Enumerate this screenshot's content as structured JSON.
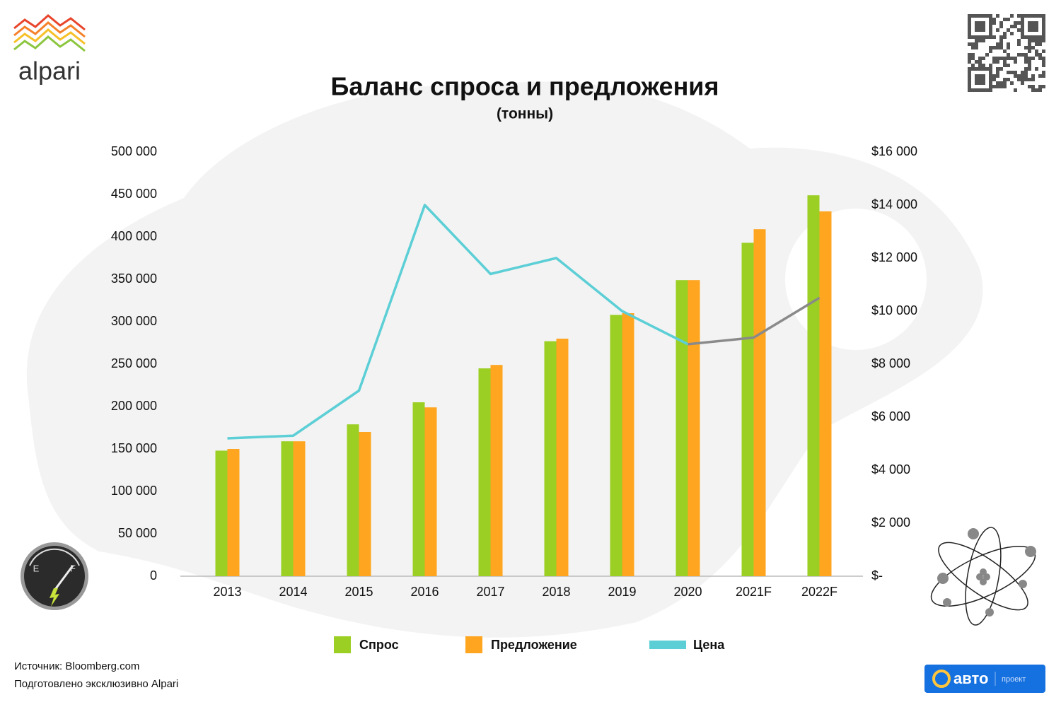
{
  "logo": {
    "text": "alpari"
  },
  "gauge": {
    "empty": "E",
    "full": "F"
  },
  "footer": {
    "source": "Источник: Bloomberg.com",
    "prepared": "Подготовлено эксклюзивно Alpari"
  },
  "badge": {
    "brand": "авто",
    "tag": "проект"
  },
  "chart_data": {
    "type": "bar",
    "title": "Баланс спроса и предложения",
    "subtitle": "(тонны)",
    "categories": [
      "2013",
      "2014",
      "2015",
      "2016",
      "2017",
      "2018",
      "2019",
      "2020",
      "2021F",
      "2022F"
    ],
    "series": [
      {
        "name": "Спрос",
        "color": "#9bcf23",
        "values": [
          148000,
          159000,
          179000,
          205000,
          245000,
          277000,
          308000,
          349000,
          393000,
          449000
        ]
      },
      {
        "name": "Предложение",
        "color": "#ffa51f",
        "values": [
          150000,
          159000,
          170000,
          199000,
          249000,
          280000,
          310000,
          349000,
          409000,
          430000
        ]
      },
      {
        "name": "Цена",
        "type": "line",
        "axis": "y2",
        "color": "#5ccfd6",
        "point_colors": [
          "#5ccfd6",
          "#5ccfd6",
          "#5ccfd6",
          "#5ccfd6",
          "#5ccfd6",
          "#5ccfd6",
          "#5ccfd6",
          "#5ccfd6",
          "#8a8a8a",
          "#8a8a8a"
        ],
        "values": [
          5200,
          5300,
          7000,
          14000,
          11400,
          12000,
          10000,
          8750,
          9000,
          10500
        ]
      }
    ],
    "ylim": [
      0,
      500000
    ],
    "yticks": [
      0,
      {
        "value": 50000,
        "label": "50 000"
      },
      {
        "value": 100000,
        "label": "100 000"
      },
      {
        "value": 150000,
        "label": "150 000"
      },
      {
        "value": 200000,
        "label": "200 000"
      },
      {
        "value": 250000,
        "label": "250 000"
      },
      {
        "value": 300000,
        "label": "300 000"
      },
      {
        "value": 350000,
        "label": "350 000"
      },
      {
        "value": 400000,
        "label": "400 000"
      },
      {
        "value": 450000,
        "label": "450 000"
      },
      {
        "value": 500000,
        "label": "500 000"
      }
    ],
    "y2lim": [
      0,
      16000
    ],
    "y2ticks": [
      {
        "value": 0,
        "label": "$-"
      },
      {
        "value": 2000,
        "label": "$2 000"
      },
      {
        "value": 4000,
        "label": "$4 000"
      },
      {
        "value": 6000,
        "label": "$6 000"
      },
      {
        "value": 8000,
        "label": "$8 000"
      },
      {
        "value": 10000,
        "label": "$10 000"
      },
      {
        "value": 12000,
        "label": "$12 000"
      },
      {
        "value": 14000,
        "label": "$14 000"
      },
      {
        "value": 16000,
        "label": "$16 000"
      }
    ],
    "grid": false
  }
}
